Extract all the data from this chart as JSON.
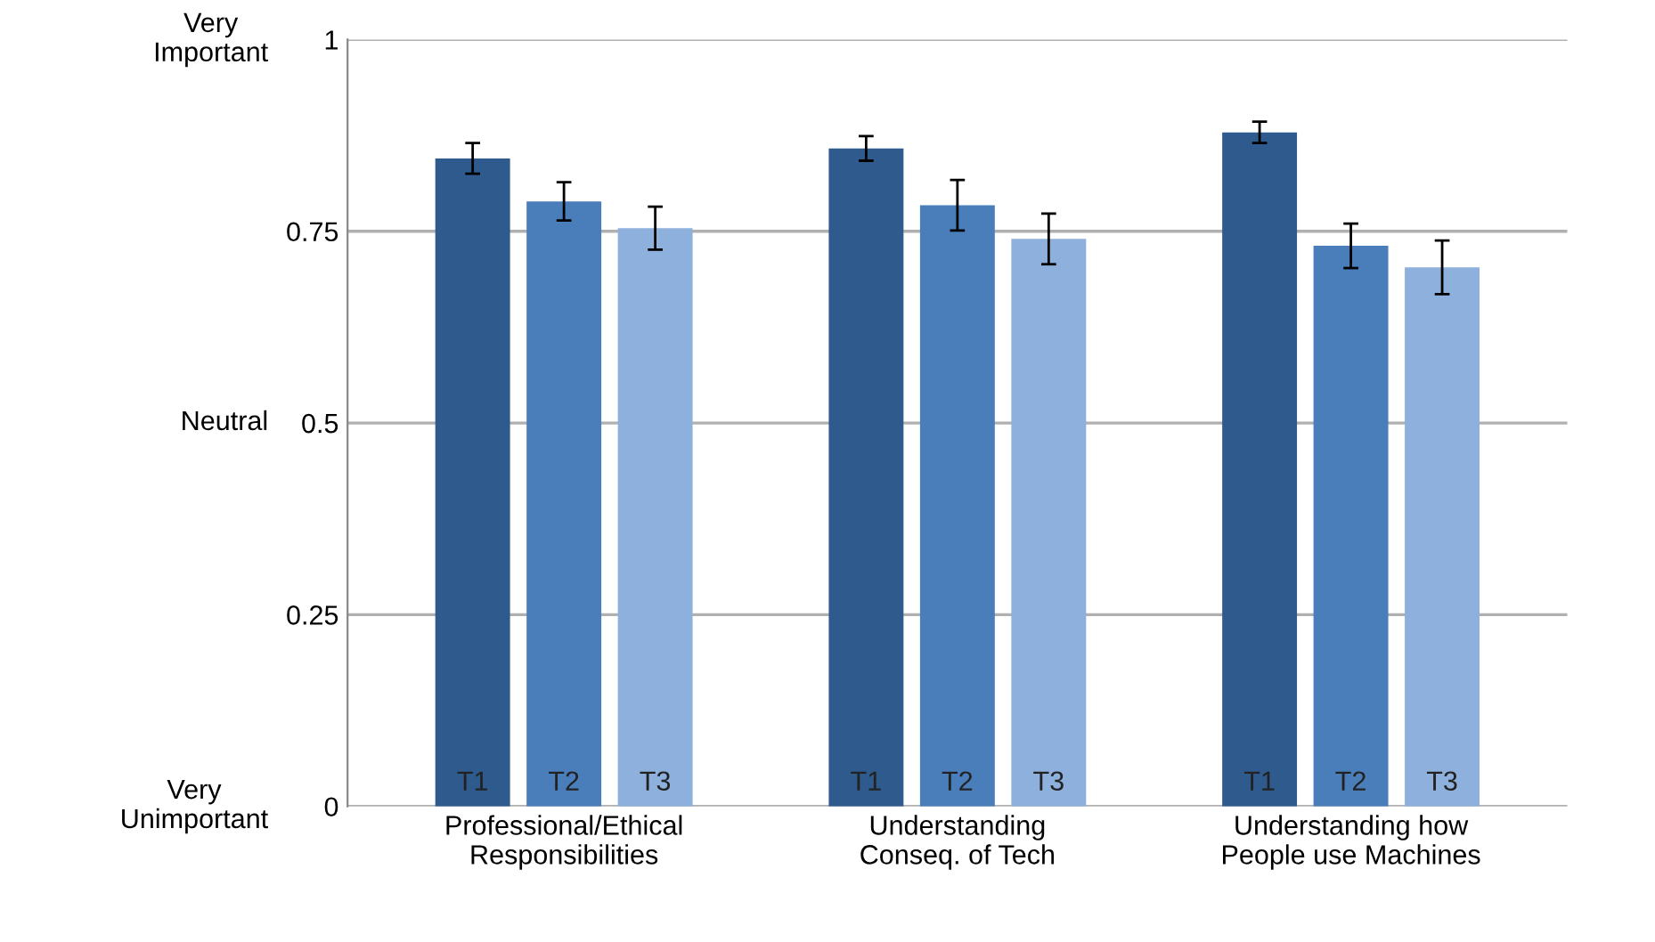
{
  "chart_data": {
    "type": "bar",
    "categories": [
      "Professional/Ethical\nResponsibilities",
      "Understanding\nConseq. of Tech",
      "Understanding how\nPeople use Machines"
    ],
    "series": [
      {
        "name": "T1",
        "color": "#2e5a8e",
        "values": [
          0.845,
          0.858,
          0.879
        ],
        "errors": [
          0.02,
          0.016,
          0.014
        ]
      },
      {
        "name": "T2",
        "color": "#4a7ebb",
        "values": [
          0.789,
          0.784,
          0.731
        ],
        "errors": [
          0.025,
          0.033,
          0.029
        ]
      },
      {
        "name": "T3",
        "color": "#8eb0dc",
        "values": [
          0.754,
          0.74,
          0.703
        ],
        "errors": [
          0.028,
          0.033,
          0.035
        ]
      }
    ],
    "ylim": [
      0,
      1
    ],
    "yticks": [
      0,
      0.25,
      0.5,
      0.75,
      1
    ],
    "grid": "y",
    "annotations": [
      "Very\nImportant",
      "Neutral",
      "Very\nUnimportant"
    ]
  }
}
